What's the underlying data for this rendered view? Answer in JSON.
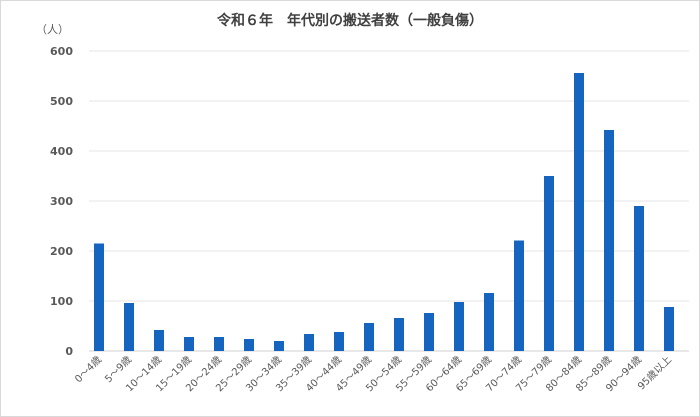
{
  "chart_data": {
    "type": "bar",
    "title": "令和６年　年代別の搬送者数（一般負傷）",
    "ylabel": "（人）",
    "xlabel": "",
    "ylim": [
      0,
      600
    ],
    "yticks": [
      0,
      100,
      200,
      300,
      400,
      500,
      600
    ],
    "grid": true,
    "bar_color": "#1565c0",
    "categories": [
      "0～4歳",
      "5～9歳",
      "10～14歳",
      "15～19歳",
      "20～24歳",
      "25～29歳",
      "30～34歳",
      "35～39歳",
      "40～44歳",
      "45～49歳",
      "50～54歳",
      "55～59歳",
      "60～64歳",
      "65～69歳",
      "70～74歳",
      "75～79歳",
      "80～84歳",
      "85～89歳",
      "90～94歳",
      "95歳以上"
    ],
    "values": [
      215,
      96,
      42,
      28,
      28,
      24,
      20,
      34,
      38,
      56,
      66,
      76,
      98,
      116,
      221,
      350,
      556,
      442,
      290,
      88
    ]
  }
}
